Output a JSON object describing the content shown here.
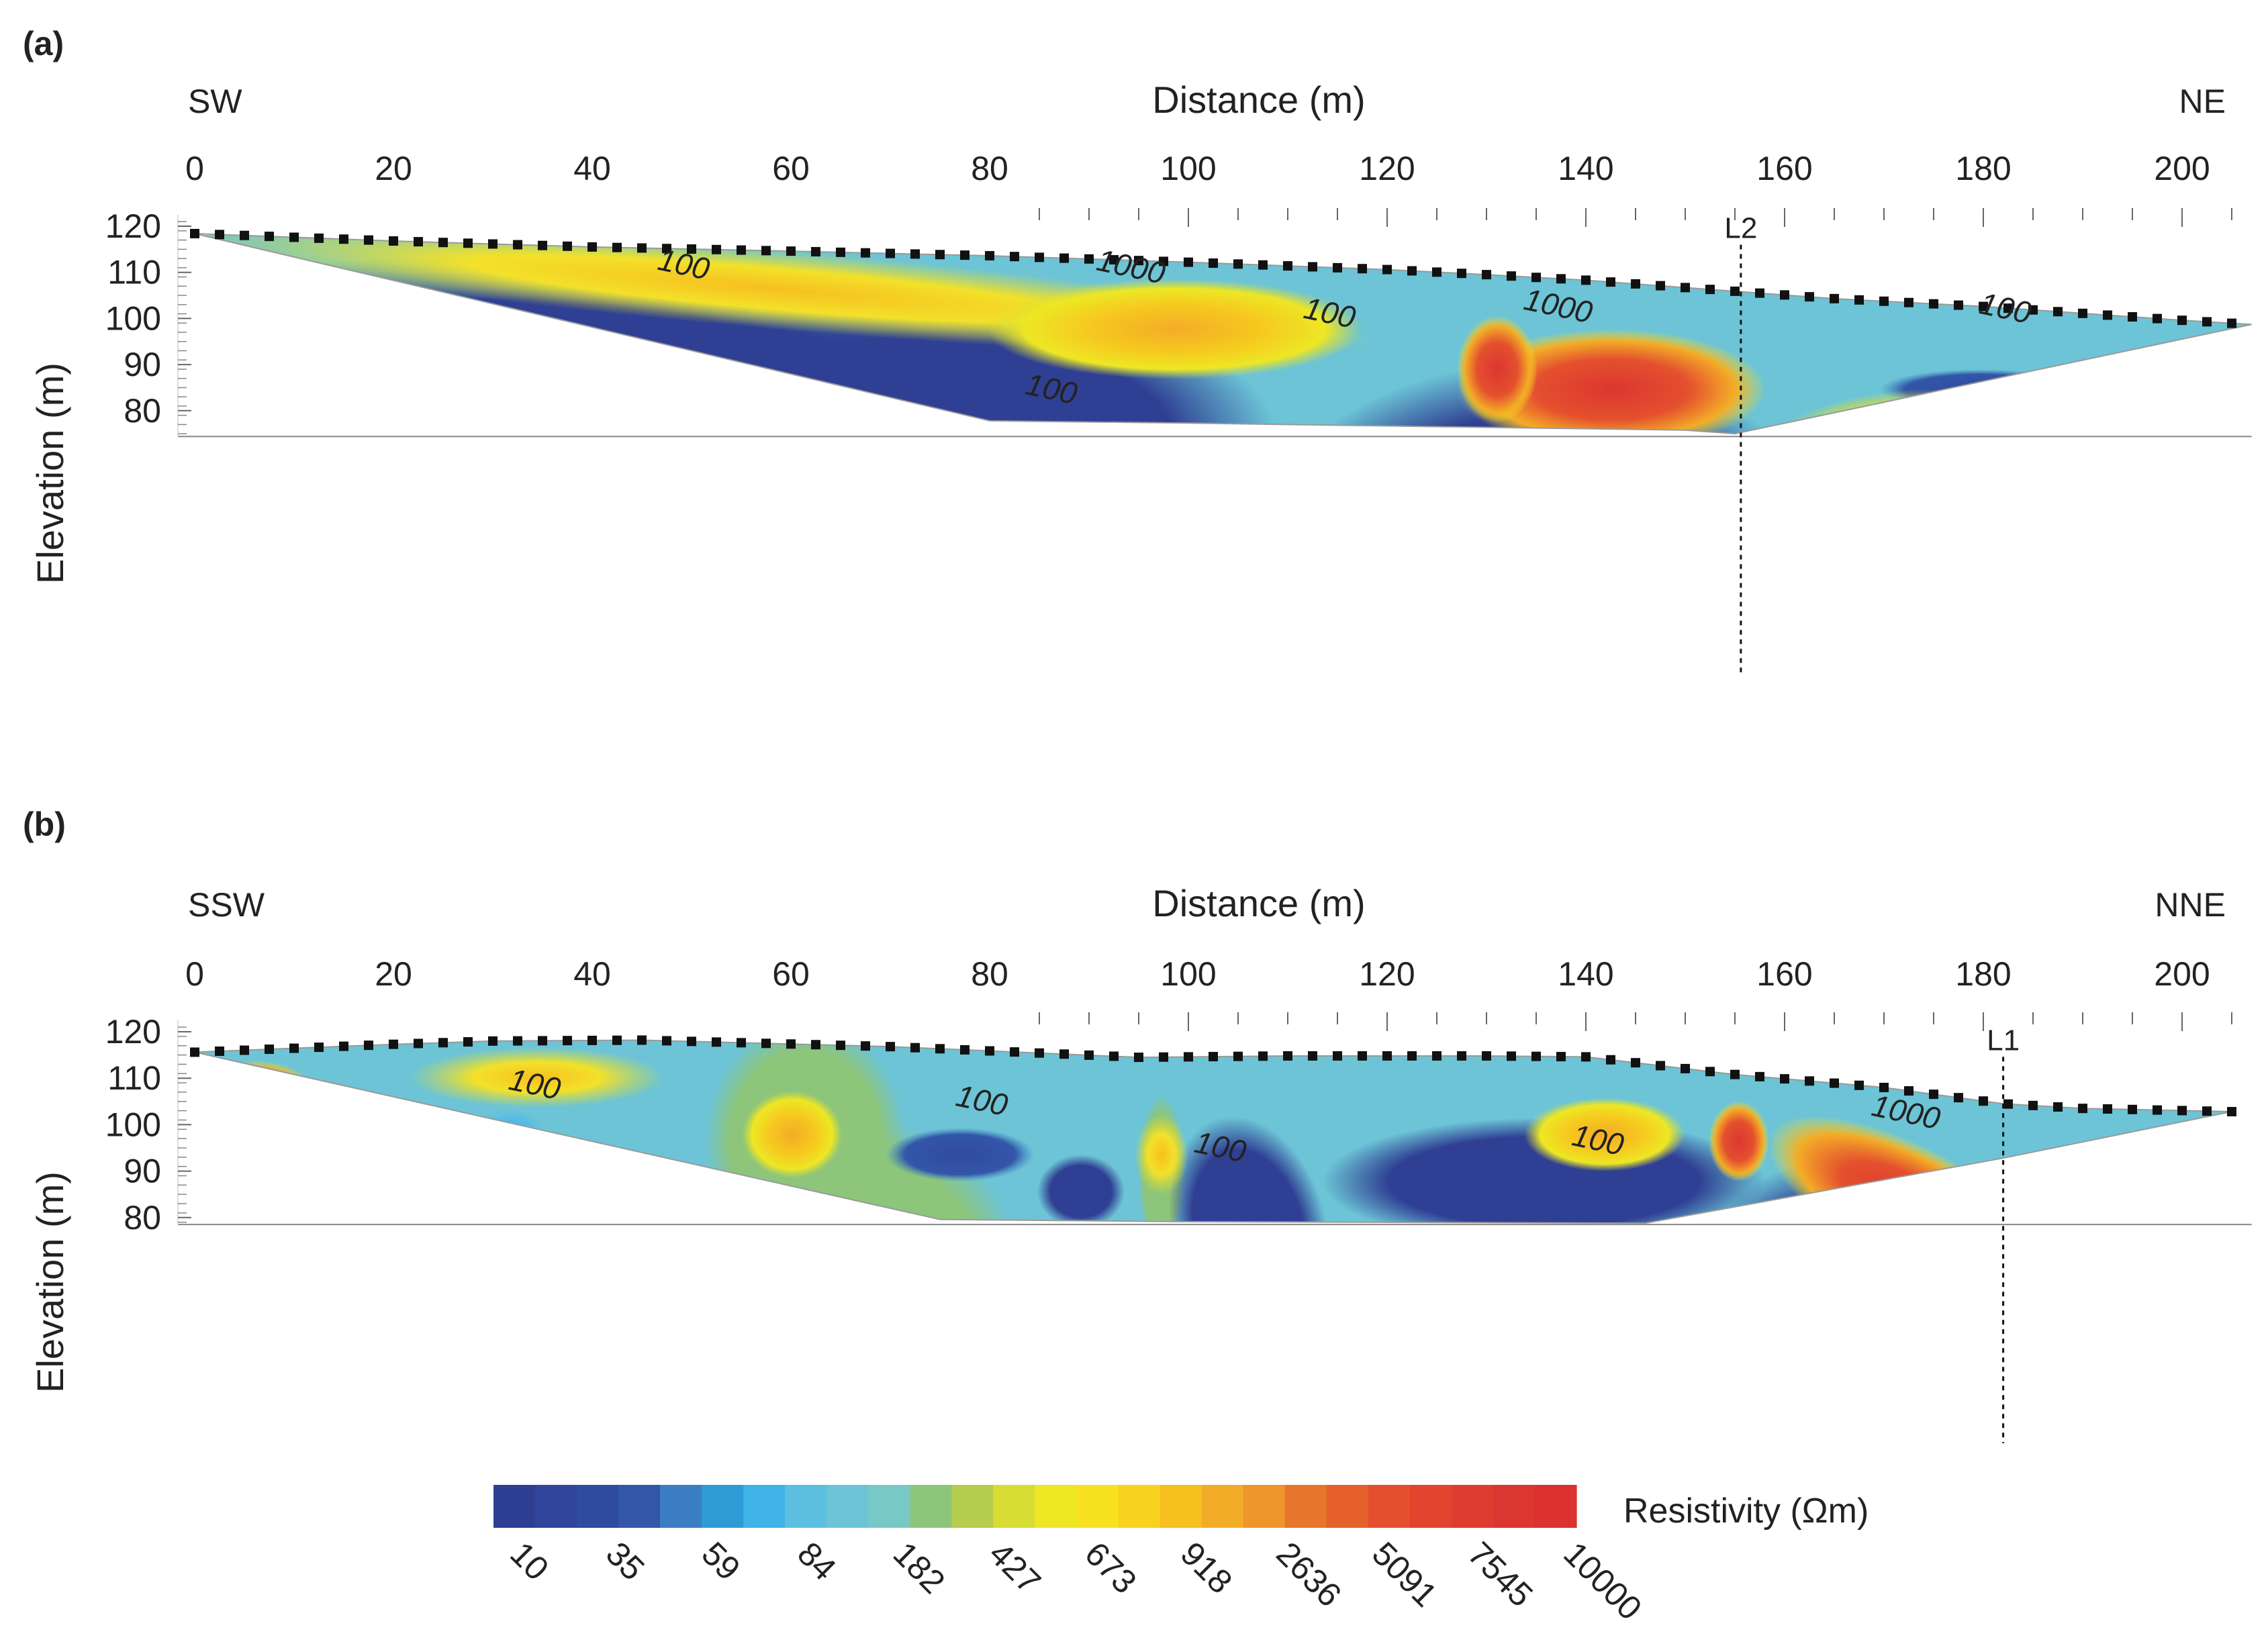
{
  "chart_data": [
    {
      "type": "heatmap",
      "panel_label": "(a)",
      "left_direction": "SW",
      "right_direction": "NE",
      "xlabel": "Distance (m)",
      "ylabel": "Elevation (m)",
      "x_ticks": [
        0,
        20,
        40,
        60,
        80,
        100,
        120,
        140,
        160,
        180,
        200
      ],
      "y_ticks": [
        120,
        110,
        100,
        90,
        80
      ],
      "xlim": [
        0,
        207
      ],
      "ylim": [
        74.4,
        122.5
      ],
      "marker_line": {
        "label": "L2",
        "x": 155.6
      },
      "surface_profile": [
        [
          0,
          118.4
        ],
        [
          20,
          116.8
        ],
        [
          40,
          115.5
        ],
        [
          60,
          114.6
        ],
        [
          80,
          113.6
        ],
        [
          100,
          112.2
        ],
        [
          120,
          110.6
        ],
        [
          130,
          109.5
        ],
        [
          140,
          108.3
        ],
        [
          155.6,
          105.8
        ],
        [
          165,
          104.3
        ],
        [
          180,
          102.6
        ],
        [
          200,
          99.6
        ],
        [
          207,
          98.7
        ]
      ],
      "bottom_boundary": [
        [
          0,
          118.4
        ],
        [
          80,
          77.8
        ],
        [
          100,
          77.3
        ],
        [
          120,
          76.7
        ],
        [
          150,
          75.8
        ],
        [
          155,
          75
        ],
        [
          207,
          98.7
        ]
      ],
      "contour_labels": [
        {
          "text": "100",
          "x": 49,
          "y": 109.5
        },
        {
          "text": "1000",
          "x": 94,
          "y": 109
        },
        {
          "text": "1000",
          "x": 137,
          "y": 100.5
        },
        {
          "text": "100",
          "x": 114,
          "y": 99
        },
        {
          "text": "100",
          "x": 182,
          "y": 100
        },
        {
          "text": "100",
          "x": 86,
          "y": 82.5
        }
      ]
    },
    {
      "type": "heatmap",
      "panel_label": "(b)",
      "left_direction": "SSW",
      "right_direction": "NNE",
      "xlabel": "Distance (m)",
      "ylabel": "Elevation (m)",
      "x_ticks": [
        0,
        20,
        40,
        60,
        80,
        100,
        120,
        140,
        160,
        180,
        200
      ],
      "y_ticks": [
        120,
        110,
        100,
        90,
        80
      ],
      "xlim": [
        0,
        207
      ],
      "ylim": [
        78.5,
        122.5
      ],
      "marker_line": {
        "label": "L1",
        "x": 182
      },
      "surface_profile": [
        [
          0,
          115.6
        ],
        [
          20,
          117.3
        ],
        [
          30,
          118
        ],
        [
          45,
          118.2
        ],
        [
          70,
          116.8
        ],
        [
          95,
          114.5
        ],
        [
          110,
          114.8
        ],
        [
          130,
          114.8
        ],
        [
          140,
          114.6
        ],
        [
          155,
          110.8
        ],
        [
          170,
          108
        ],
        [
          182,
          104.5
        ],
        [
          190,
          103.5
        ],
        [
          205,
          102.8
        ]
      ],
      "bottom_boundary": [
        [
          0,
          115.6
        ],
        [
          75,
          79.6
        ],
        [
          100,
          79.1
        ],
        [
          146,
          78.8
        ],
        [
          182,
          92.8
        ],
        [
          205,
          102.8
        ]
      ],
      "contour_labels": [
        {
          "text": "100",
          "x": 34,
          "y": 106.5
        },
        {
          "text": "100",
          "x": 79,
          "y": 103
        },
        {
          "text": "100",
          "x": 103,
          "y": 93
        },
        {
          "text": "100",
          "x": 141,
          "y": 94.5
        },
        {
          "text": "1000",
          "x": 172,
          "y": 100.5
        }
      ]
    }
  ],
  "colorbar": {
    "title": "Resistivity (Ωm)",
    "tick_labels": [
      "10",
      "35",
      "59",
      "84",
      "182",
      "427",
      "673",
      "918",
      "2636",
      "5091",
      "7545",
      "10000"
    ],
    "colors": [
      "#2e3f93",
      "#2f449a",
      "#2f4aa1",
      "#3456aa",
      "#3b7ec4",
      "#2f9bd6",
      "#3fb3e6",
      "#5dbfe0",
      "#6cc4d6",
      "#78c8c7",
      "#8dc57b",
      "#b5cc4d",
      "#d8dd33",
      "#ede724",
      "#f8e21f",
      "#f8d21f",
      "#f6c01f",
      "#f3ac27",
      "#ee952c",
      "#e8752c",
      "#e6602c",
      "#e4502e",
      "#e2452f",
      "#df3c30",
      "#dc3630",
      "#db3131"
    ]
  }
}
